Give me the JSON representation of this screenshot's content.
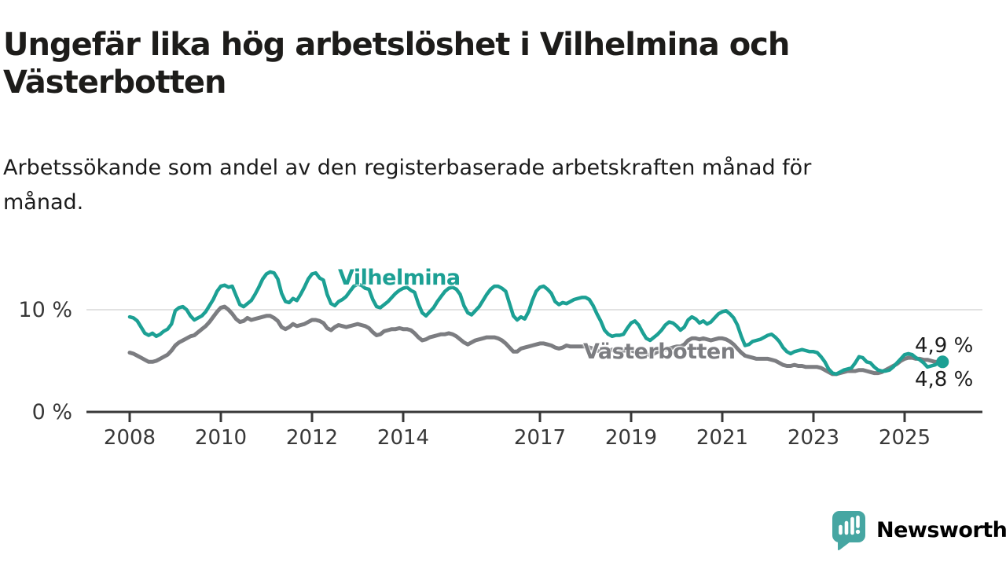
{
  "header": {
    "title_lines": [
      "Ungefär lika hög arbetslöshet i Vilhelmina och",
      "Västerbotten"
    ],
    "subtitle_lines": [
      "Arbetssökande som andel av den registerbaserade arbetskraften månad för",
      "månad."
    ]
  },
  "branding": {
    "logo_text": "Newsworthy",
    "logo_icon": "bar-chart-speech-bubble-icon",
    "logo_color": "#46a6a2",
    "logo_text_color": "#3b9fa0"
  },
  "chart_data": {
    "type": "line",
    "x_unit": "month",
    "x_start": "2008-01",
    "x_end": "2025-11",
    "y_unit": "percent",
    "ylim": [
      0,
      15.5
    ],
    "grid": "single-gridline-at-10",
    "legend_position": "inline-labels-on-lines",
    "axis_color": "#383838",
    "grid_color": "#d9d9d9",
    "x_tick_years": [
      2008,
      2010,
      2012,
      2014,
      2017,
      2019,
      2021,
      2023,
      2025
    ],
    "y_ticks": [
      {
        "value": 0,
        "label": "0 %"
      },
      {
        "value": 10,
        "label": "10 %"
      }
    ],
    "series": [
      {
        "name": "Vilhelmina",
        "color": "#1ca094",
        "end_label": "4,9 %",
        "end_value": 4.9,
        "values": [
          9.3,
          9.2,
          8.9,
          8.3,
          7.7,
          7.5,
          7.7,
          7.4,
          7.6,
          7.9,
          8.1,
          8.6,
          9.9,
          10.2,
          10.3,
          10.0,
          9.4,
          9.0,
          9.2,
          9.4,
          9.8,
          10.4,
          11.0,
          11.8,
          12.3,
          12.4,
          12.2,
          12.3,
          11.4,
          10.5,
          10.3,
          10.6,
          10.9,
          11.5,
          12.2,
          13.0,
          13.5,
          13.7,
          13.6,
          13.0,
          11.6,
          10.8,
          10.7,
          11.1,
          10.9,
          11.5,
          12.2,
          13.0,
          13.5,
          13.6,
          13.1,
          12.9,
          11.5,
          10.6,
          10.4,
          10.8,
          11.0,
          11.3,
          11.8,
          12.3,
          12.5,
          12.4,
          12.1,
          12.0,
          11.0,
          10.3,
          10.2,
          10.5,
          10.8,
          11.2,
          11.6,
          11.9,
          12.1,
          12.2,
          11.9,
          11.7,
          10.6,
          9.7,
          9.4,
          9.8,
          10.2,
          10.8,
          11.3,
          11.8,
          12.1,
          12.2,
          12.0,
          11.5,
          10.4,
          9.7,
          9.5,
          9.9,
          10.3,
          10.9,
          11.5,
          12.0,
          12.3,
          12.3,
          12.1,
          11.8,
          10.6,
          9.4,
          9.0,
          9.3,
          9.1,
          9.8,
          10.9,
          11.8,
          12.2,
          12.3,
          12.0,
          11.6,
          10.8,
          10.5,
          10.7,
          10.6,
          10.8,
          11.0,
          11.1,
          11.2,
          11.2,
          11.0,
          10.4,
          9.6,
          8.9,
          8.0,
          7.6,
          7.4,
          7.5,
          7.5,
          7.6,
          8.2,
          8.7,
          8.9,
          8.5,
          7.8,
          7.2,
          7.0,
          7.3,
          7.6,
          8.0,
          8.5,
          8.8,
          8.7,
          8.4,
          8.0,
          8.3,
          9.0,
          9.3,
          9.1,
          8.7,
          8.9,
          8.6,
          8.8,
          9.2,
          9.6,
          9.8,
          9.9,
          9.6,
          9.2,
          8.5,
          7.4,
          6.5,
          6.6,
          6.9,
          7.0,
          7.1,
          7.3,
          7.5,
          7.6,
          7.3,
          6.9,
          6.3,
          5.9,
          5.7,
          5.9,
          6.0,
          6.1,
          6.0,
          5.9,
          5.9,
          5.8,
          5.4,
          4.9,
          4.2,
          3.8,
          3.7,
          3.9,
          4.1,
          4.2,
          4.3,
          4.8,
          5.4,
          5.3,
          4.9,
          4.8,
          4.4,
          4.1,
          4.0,
          4.0,
          4.1,
          4.4,
          4.8,
          5.2,
          5.6,
          5.7,
          5.6,
          5.3,
          5.1,
          4.8,
          4.4,
          4.5,
          4.6,
          4.8,
          4.9
        ]
      },
      {
        "name": "Västerbotten",
        "color": "#7c7d81",
        "end_label": "4,8 %",
        "end_value": 4.8,
        "values": [
          5.8,
          5.7,
          5.5,
          5.3,
          5.1,
          4.9,
          4.9,
          5.0,
          5.2,
          5.4,
          5.6,
          6.0,
          6.5,
          6.8,
          7.0,
          7.2,
          7.4,
          7.5,
          7.8,
          8.1,
          8.4,
          8.8,
          9.3,
          9.8,
          10.2,
          10.3,
          10.0,
          9.6,
          9.1,
          8.8,
          8.9,
          9.2,
          9.0,
          9.1,
          9.2,
          9.3,
          9.4,
          9.4,
          9.2,
          8.9,
          8.3,
          8.1,
          8.3,
          8.6,
          8.4,
          8.5,
          8.6,
          8.8,
          9.0,
          9.0,
          8.9,
          8.7,
          8.2,
          8.0,
          8.3,
          8.5,
          8.4,
          8.3,
          8.4,
          8.5,
          8.6,
          8.5,
          8.4,
          8.2,
          7.8,
          7.5,
          7.6,
          7.9,
          8.0,
          8.1,
          8.1,
          8.2,
          8.1,
          8.1,
          8.0,
          7.7,
          7.3,
          7.0,
          7.1,
          7.3,
          7.4,
          7.5,
          7.6,
          7.6,
          7.7,
          7.6,
          7.4,
          7.1,
          6.8,
          6.6,
          6.8,
          7.0,
          7.1,
          7.2,
          7.3,
          7.3,
          7.3,
          7.2,
          7.0,
          6.7,
          6.3,
          5.9,
          5.9,
          6.2,
          6.3,
          6.4,
          6.5,
          6.6,
          6.7,
          6.7,
          6.6,
          6.5,
          6.3,
          6.2,
          6.3,
          6.5,
          6.4,
          6.4,
          6.4,
          6.4,
          6.4,
          6.3,
          6.2,
          6.0,
          5.9,
          5.8,
          5.9,
          6.1,
          6.0,
          6.0,
          6.0,
          6.0,
          6.0,
          5.9,
          5.8,
          5.7,
          5.6,
          5.6,
          5.7,
          5.9,
          6.0,
          6.1,
          6.2,
          6.3,
          6.4,
          6.4,
          6.6,
          7.0,
          7.2,
          7.2,
          7.1,
          7.2,
          7.1,
          7.0,
          7.1,
          7.2,
          7.2,
          7.1,
          6.9,
          6.6,
          6.2,
          5.8,
          5.5,
          5.4,
          5.3,
          5.2,
          5.2,
          5.2,
          5.2,
          5.1,
          5.0,
          4.8,
          4.6,
          4.5,
          4.5,
          4.6,
          4.5,
          4.5,
          4.4,
          4.4,
          4.4,
          4.4,
          4.3,
          4.1,
          3.9,
          3.7,
          3.7,
          3.8,
          3.9,
          4.0,
          4.0,
          4.0,
          4.1,
          4.1,
          4.0,
          3.9,
          3.8,
          3.8,
          3.9,
          4.1,
          4.3,
          4.5,
          4.7,
          5.0,
          5.2,
          5.3,
          5.3,
          5.2,
          5.2,
          5.1,
          5.1,
          5.0,
          4.9,
          4.9,
          4.8
        ]
      }
    ]
  }
}
